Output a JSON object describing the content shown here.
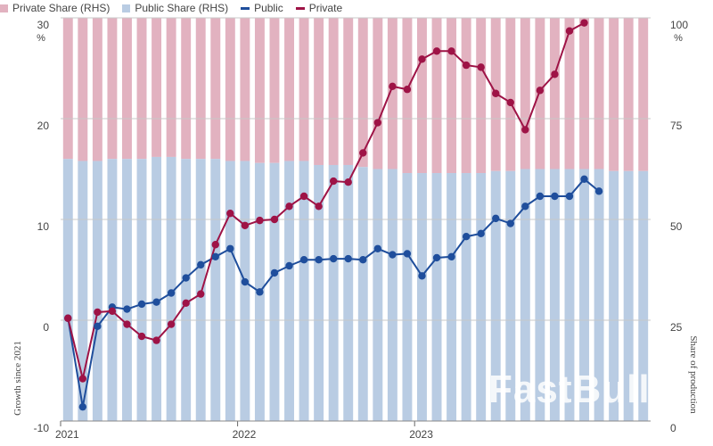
{
  "legend": [
    {
      "label": "Private Share (RHS)",
      "kind": "box",
      "color": "#e2b2c0"
    },
    {
      "label": "Public Share (RHS)",
      "kind": "box",
      "color": "#b9cce3"
    },
    {
      "label": "Public",
      "kind": "line",
      "color": "#1f4e9c"
    },
    {
      "label": "Private",
      "kind": "line",
      "color": "#9e1346"
    }
  ],
  "watermark": "FastBull",
  "chart_data": {
    "type": "bar+line",
    "x_tick_labels": [
      "2021",
      "2022",
      "2023"
    ],
    "ylabel": "Growth since 2021",
    "ylabel_right": "Share of production",
    "ylim": [
      -10,
      30
    ],
    "ylim_right": [
      0,
      100
    ],
    "y_ticks": [
      {
        "v": 30,
        "label": "30"
      },
      {
        "v": 20,
        "label": "20"
      },
      {
        "v": 10,
        "label": "10"
      },
      {
        "v": 0,
        "label": "0"
      },
      {
        "v": -10,
        "label": "-10"
      }
    ],
    "y_unit": "%",
    "y_right_ticks": [
      {
        "v": 100,
        "label": "100"
      },
      {
        "v": 75,
        "label": "75"
      },
      {
        "v": 50,
        "label": "50"
      },
      {
        "v": 25,
        "label": "25"
      },
      {
        "v": 0,
        "label": "0"
      }
    ],
    "y_right_unit": "%",
    "grid": true,
    "legend_position": "top",
    "public_share": [
      65,
      64.5,
      64.5,
      65,
      65,
      65,
      65.5,
      65.5,
      65,
      65,
      65,
      64.5,
      64.5,
      64,
      64,
      64.5,
      64.5,
      63.5,
      63.5,
      63.5,
      63,
      62.5,
      62.5,
      61.5,
      61.5,
      61.5,
      61.5,
      61.5,
      61.5,
      62,
      62,
      62.5,
      62.5,
      62.5,
      62.5,
      62.5,
      62.5,
      62,
      62,
      62
    ],
    "series": [
      {
        "name": "Public",
        "color": "#1f4e9c",
        "values": [
          0.2,
          -8.6,
          -0.6,
          1.3,
          1.1,
          1.6,
          1.8,
          2.7,
          4.2,
          5.5,
          6.3,
          7.1,
          3.8,
          2.8,
          4.7,
          5.4,
          6.0,
          6.0,
          6.1,
          6.1,
          6.0,
          7.1,
          6.5,
          6.6,
          4.4,
          6.2,
          6.3,
          8.3,
          8.6,
          10.1,
          9.6,
          11.3,
          12.3,
          12.3,
          12.3,
          14.0,
          12.8
        ]
      },
      {
        "name": "Private",
        "color": "#9e1346",
        "values": [
          0.2,
          -5.8,
          0.8,
          0.9,
          -0.4,
          -1.6,
          -2.0,
          -0.4,
          1.7,
          2.6,
          7.5,
          10.6,
          9.4,
          9.9,
          10.0,
          11.3,
          12.3,
          11.3,
          13.8,
          13.7,
          16.6,
          19.6,
          23.2,
          22.9,
          25.9,
          26.7,
          26.7,
          25.3,
          25.1,
          22.5,
          21.6,
          18.9,
          22.8,
          24.4,
          28.7,
          29.5
        ]
      }
    ]
  }
}
